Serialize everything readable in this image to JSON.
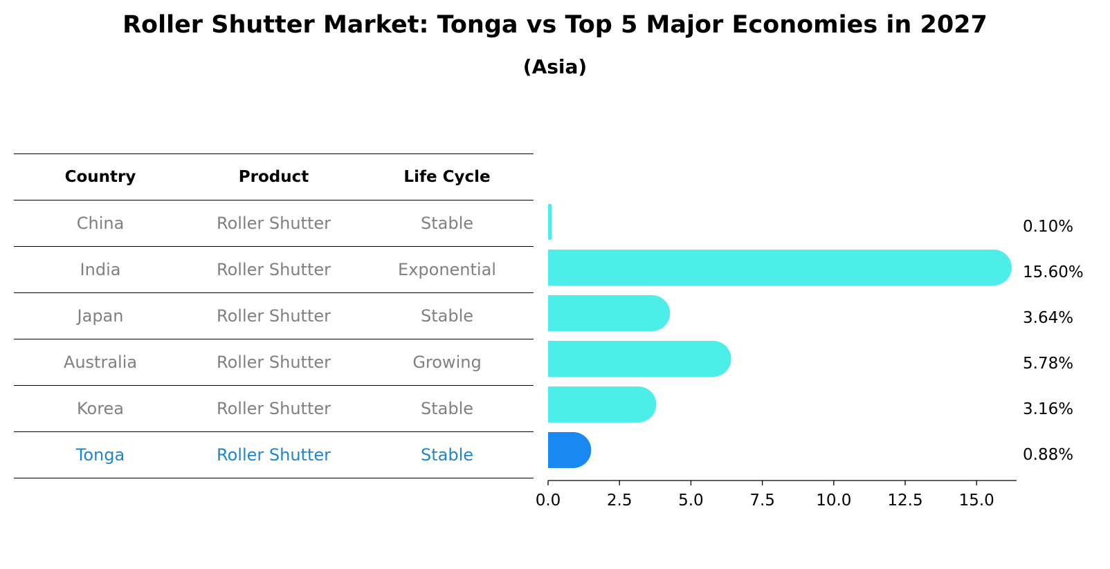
{
  "title": "Roller Shutter Market: Tonga vs Top 5 Major Economies in 2027",
  "subtitle": "(Asia)",
  "table": {
    "headers": [
      "Country",
      "Product",
      "Life Cycle"
    ],
    "rows": [
      {
        "country": "China",
        "product": "Roller Shutter",
        "life_cycle": "Stable"
      },
      {
        "country": "India",
        "product": "Roller Shutter",
        "life_cycle": "Exponential"
      },
      {
        "country": "Japan",
        "product": "Roller Shutter",
        "life_cycle": "Stable"
      },
      {
        "country": "Australia",
        "product": "Roller Shutter",
        "life_cycle": "Growing"
      },
      {
        "country": "Korea",
        "product": "Roller Shutter",
        "life_cycle": "Stable"
      },
      {
        "country": "Tonga",
        "product": "Roller Shutter",
        "life_cycle": "Stable"
      }
    ],
    "highlight_row": 5
  },
  "chart_data": {
    "type": "bar",
    "orientation": "horizontal",
    "categories": [
      "China",
      "India",
      "Japan",
      "Australia",
      "Korea",
      "Tonga"
    ],
    "values": [
      0.1,
      15.6,
      3.64,
      5.78,
      3.16,
      0.88
    ],
    "value_labels": [
      "0.10%",
      "15.60%",
      "3.64%",
      "5.78%",
      "3.16%",
      "0.88%"
    ],
    "xlim": [
      0,
      16.4
    ],
    "xticks": [
      0.0,
      2.5,
      5.0,
      7.5,
      10.0,
      12.5,
      15.0
    ],
    "xtick_labels": [
      "0.0",
      "2.5",
      "5.0",
      "7.5",
      "10.0",
      "12.5",
      "15.0"
    ],
    "colors": {
      "default": "#4dedea",
      "highlight": "#1a88f2",
      "highlight_index": 5
    }
  }
}
